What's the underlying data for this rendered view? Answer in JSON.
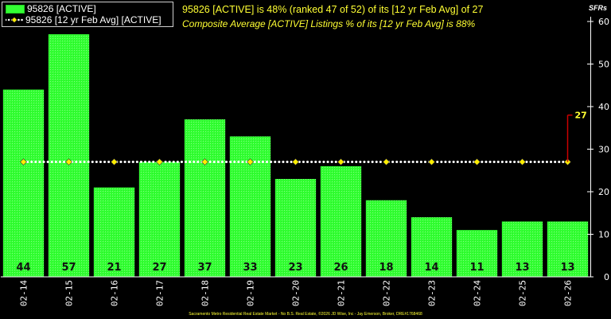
{
  "chart_data": {
    "type": "bar",
    "title": "95826 [ACTIVE] is 48% (ranked 47 of 52) of its [12 yr Feb Avg] of 27",
    "subtitle": "Composite Average [ACTIVE] Listings % of its [12 yr Feb Avg] is 88%",
    "ylabel": "SFRs",
    "categories": [
      "02-14",
      "02-15",
      "02-16",
      "02-17",
      "02-18",
      "02-19",
      "02-20",
      "02-21",
      "02-22",
      "02-23",
      "02-24",
      "02-25",
      "02-26"
    ],
    "series": [
      {
        "name": "95826 [ACTIVE]",
        "type": "bar",
        "values": [
          44,
          57,
          21,
          27,
          37,
          33,
          23,
          26,
          18,
          14,
          11,
          13,
          13
        ],
        "color": "#33ff33"
      },
      {
        "name": "95826 [12 yr Feb Avg] [ACTIVE]",
        "type": "line",
        "values": [
          27,
          27,
          27,
          27,
          27,
          27,
          27,
          27,
          27,
          27,
          27,
          27,
          27
        ],
        "color": "#ffffff",
        "marker_color": "#ffee00"
      }
    ],
    "ylim": [
      0,
      60
    ],
    "yticks": [
      0,
      10,
      20,
      30,
      40,
      50,
      60
    ],
    "grid": false,
    "legend_position": "top-left",
    "annotation": {
      "label": "27",
      "category": "02-26",
      "from": 27,
      "to": 38,
      "color": "#cc0000"
    }
  },
  "colors": {
    "background": "#000000",
    "bar": "#33ff33",
    "text_highlight": "#ffff33",
    "annotation": "#cc0000"
  },
  "footer": "Sacramento Metro Residential Real Estate Market - No B.S. Real Estate, ©2026 JD Wise, Inc - Jay Emerson, Broker, DRE#1768468"
}
